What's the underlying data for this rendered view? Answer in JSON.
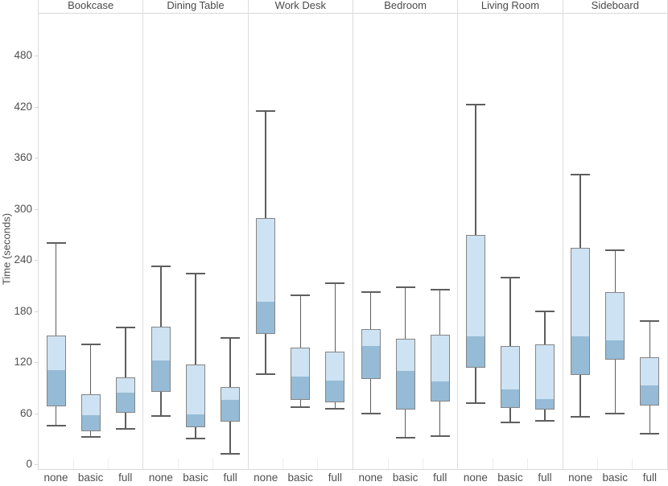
{
  "colors": {
    "box_fill_light": "#cde2f2",
    "box_fill_dark": "#95bbd6",
    "box_border": "#858585",
    "whisker": "#5e5e5e",
    "axis_line": "#d9d9d9",
    "panel_divider": "#dcdcdc",
    "text": "#4f4f4f"
  },
  "chart_data": {
    "type": "boxplot",
    "title": "",
    "xlabel": "",
    "ylabel": "Time (seconds)",
    "ylim": [
      -6,
      530
    ],
    "yticks": [
      0,
      60,
      120,
      180,
      240,
      300,
      360,
      420,
      480
    ],
    "grid": false,
    "legend": "none",
    "categories": [
      "none",
      "basic",
      "full"
    ],
    "facets": [
      {
        "title": "Bookcase",
        "boxes": [
          {
            "category": "none",
            "whisker_low": 45,
            "q1": 68,
            "median": 110,
            "q3": 151,
            "whisker_high": 260
          },
          {
            "category": "basic",
            "whisker_low": 32,
            "q1": 39,
            "median": 57,
            "q3": 82,
            "whisker_high": 141
          },
          {
            "category": "full",
            "whisker_low": 42,
            "q1": 60,
            "median": 83,
            "q3": 102,
            "whisker_high": 161
          }
        ]
      },
      {
        "title": "Dining Table",
        "boxes": [
          {
            "category": "none",
            "whisker_low": 57,
            "q1": 85,
            "median": 121,
            "q3": 162,
            "whisker_high": 232
          },
          {
            "category": "basic",
            "whisker_low": 30,
            "q1": 43,
            "median": 58,
            "q3": 117,
            "whisker_high": 224
          },
          {
            "category": "full",
            "whisker_low": 12,
            "q1": 50,
            "median": 75,
            "q3": 91,
            "whisker_high": 148
          }
        ]
      },
      {
        "title": "Work Desk",
        "boxes": [
          {
            "category": "none",
            "whisker_low": 106,
            "q1": 153,
            "median": 190,
            "q3": 289,
            "whisker_high": 415
          },
          {
            "category": "basic",
            "whisker_low": 67,
            "q1": 76,
            "median": 102,
            "q3": 137,
            "whisker_high": 198
          },
          {
            "category": "full",
            "whisker_low": 65,
            "q1": 73,
            "median": 97,
            "q3": 132,
            "whisker_high": 213
          }
        ]
      },
      {
        "title": "Bedroom",
        "boxes": [
          {
            "category": "none",
            "whisker_low": 60,
            "q1": 100,
            "median": 138,
            "q3": 159,
            "whisker_high": 202
          },
          {
            "category": "basic",
            "whisker_low": 31,
            "q1": 64,
            "median": 109,
            "q3": 147,
            "whisker_high": 208
          },
          {
            "category": "full",
            "whisker_low": 33,
            "q1": 74,
            "median": 96,
            "q3": 152,
            "whisker_high": 205
          }
        ]
      },
      {
        "title": "Living Room",
        "boxes": [
          {
            "category": "none",
            "whisker_low": 72,
            "q1": 113,
            "median": 149,
            "q3": 269,
            "whisker_high": 422
          },
          {
            "category": "basic",
            "whisker_low": 49,
            "q1": 66,
            "median": 87,
            "q3": 139,
            "whisker_high": 219
          },
          {
            "category": "full",
            "whisker_low": 51,
            "q1": 64,
            "median": 76,
            "q3": 141,
            "whisker_high": 180
          }
        ]
      },
      {
        "title": "Sideboard",
        "boxes": [
          {
            "category": "none",
            "whisker_low": 56,
            "q1": 105,
            "median": 149,
            "q3": 254,
            "whisker_high": 340
          },
          {
            "category": "basic",
            "whisker_low": 60,
            "q1": 123,
            "median": 145,
            "q3": 202,
            "whisker_high": 251
          },
          {
            "category": "full",
            "whisker_low": 36,
            "q1": 69,
            "median": 92,
            "q3": 126,
            "whisker_high": 168
          }
        ]
      }
    ]
  }
}
